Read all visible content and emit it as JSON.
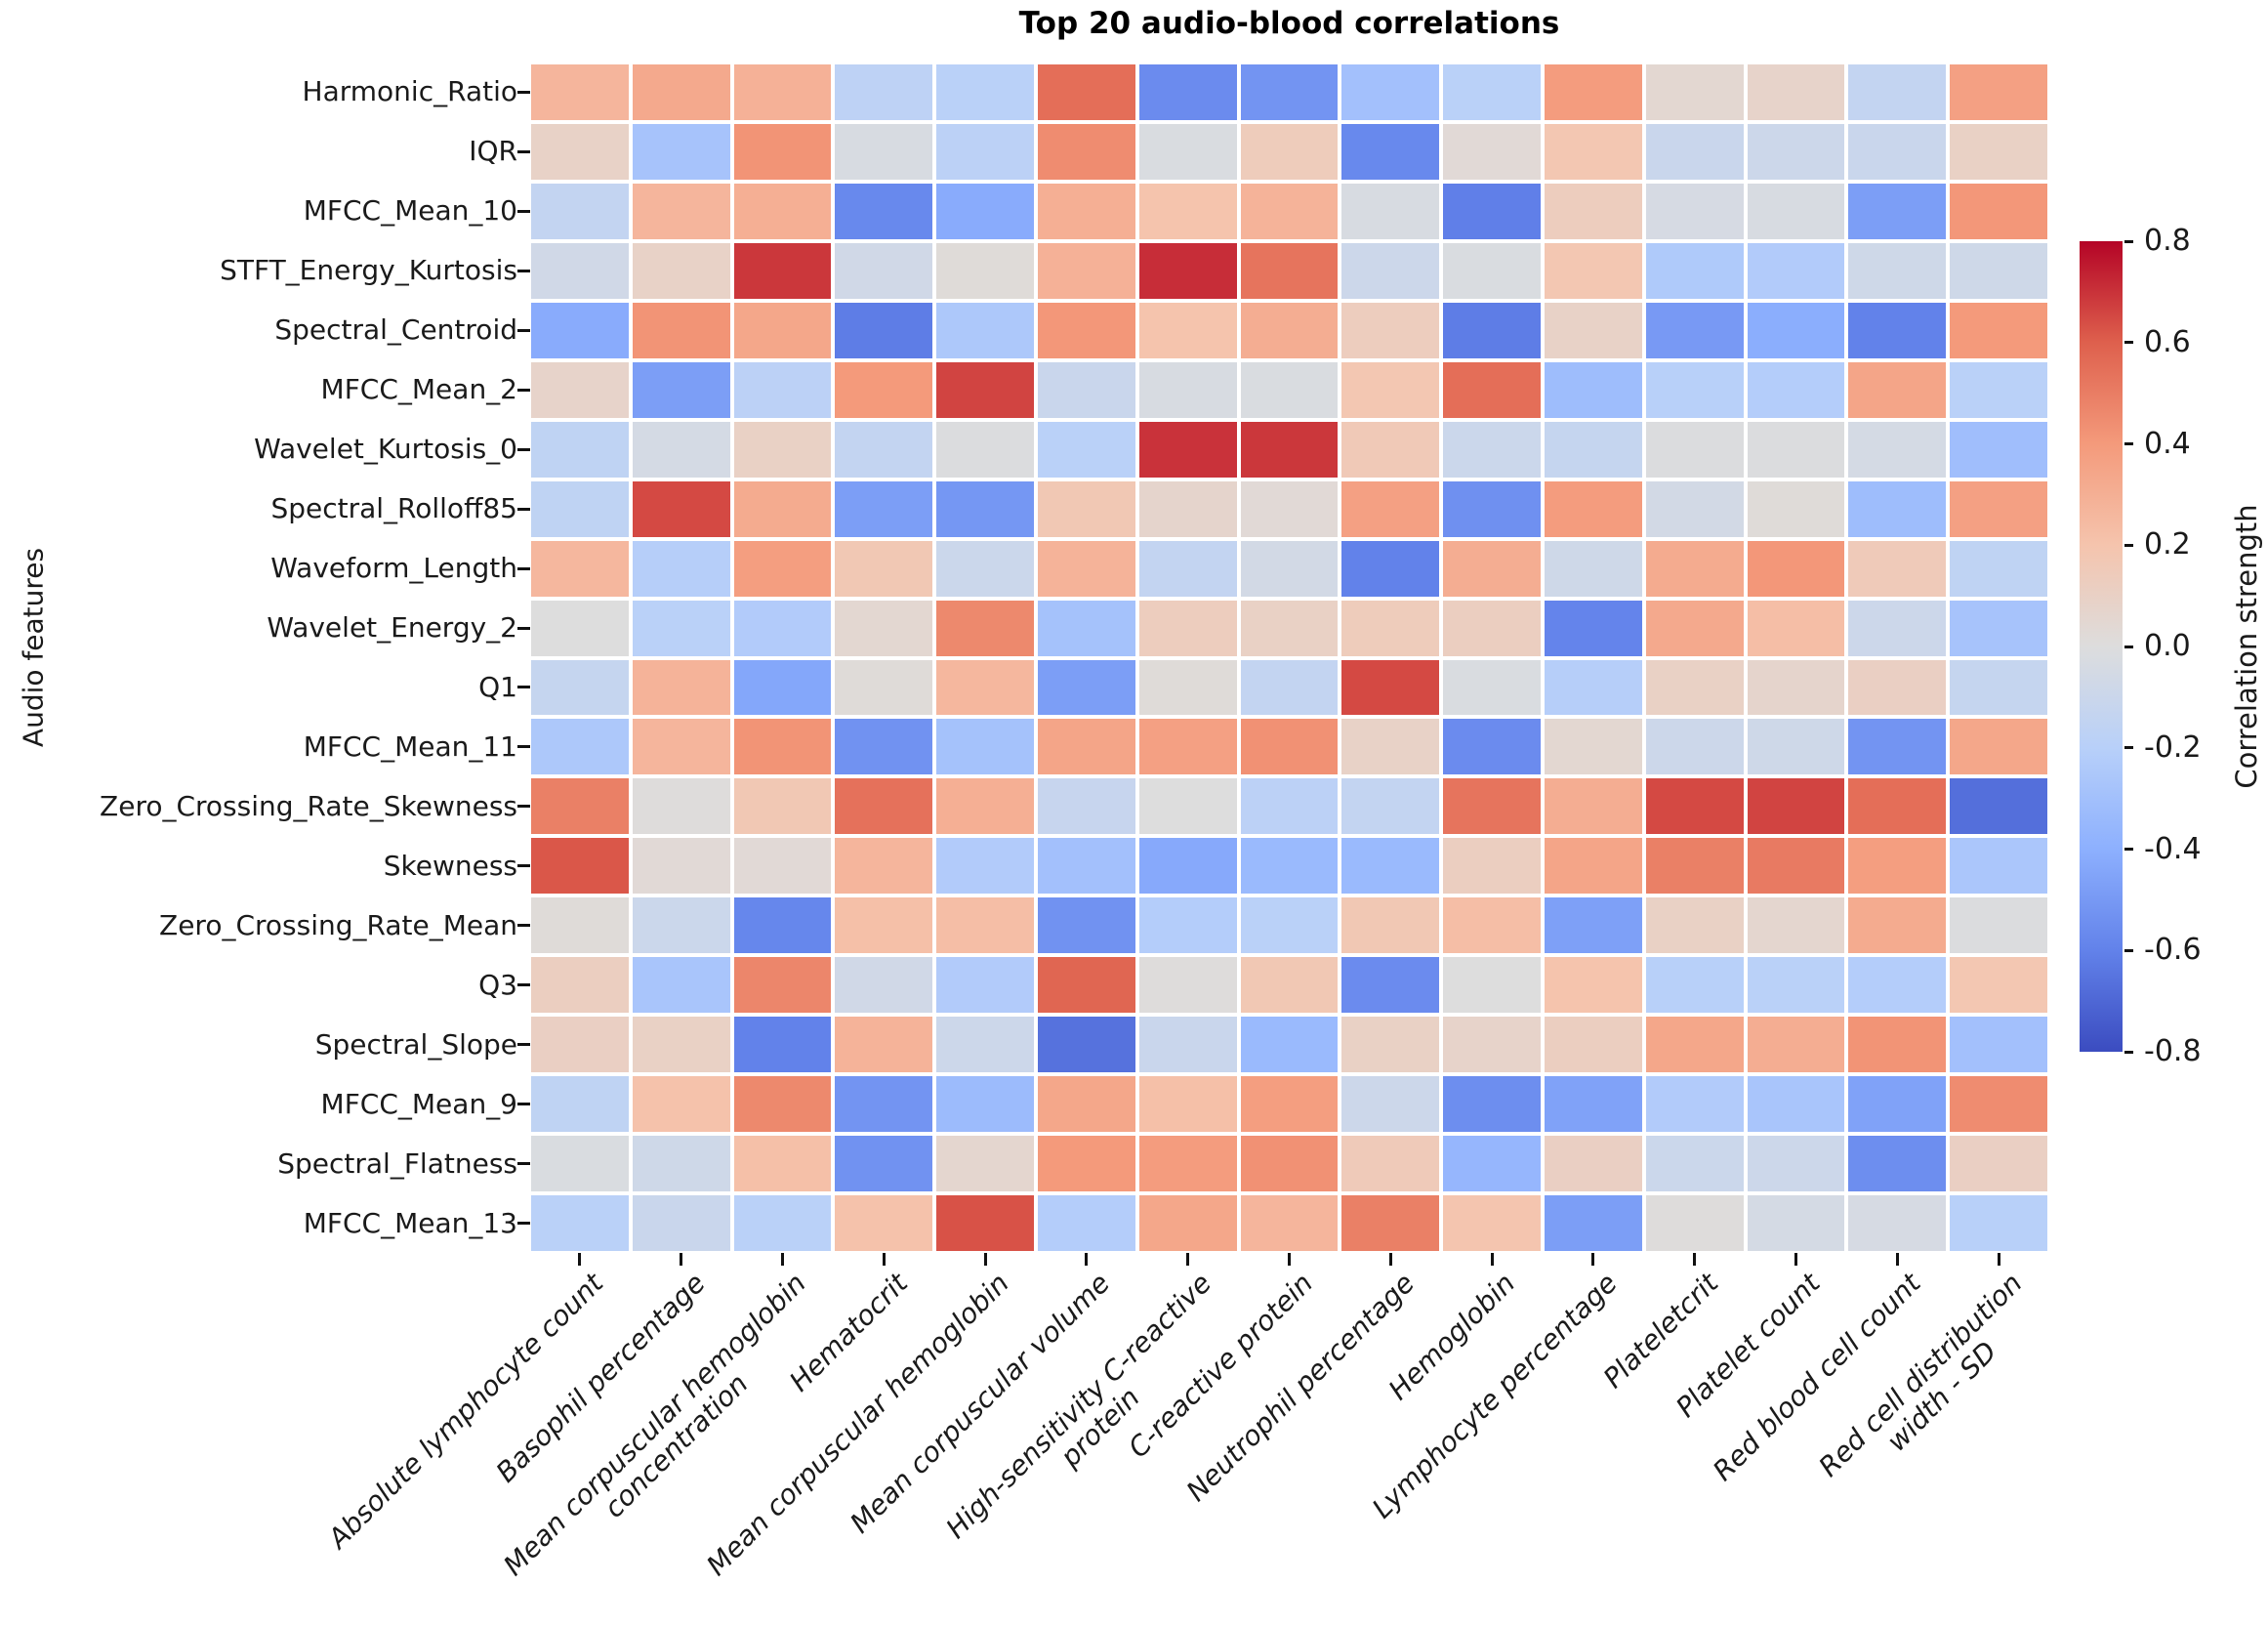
{
  "chart_data": {
    "type": "heatmap",
    "title": "Top 20 audio-blood correlations",
    "ylabel": "Audio features",
    "xlabel": "",
    "colorbar_label": "Correlation strength",
    "colorbar_tick_labels": [
      "0.8",
      "0.6",
      "0.4",
      "0.2",
      "0.0",
      "-0.2",
      "-0.4",
      "-0.6",
      "-0.8"
    ],
    "colorbar_tick_values": [
      0.8,
      0.6,
      0.4,
      0.2,
      0.0,
      -0.2,
      -0.4,
      -0.6,
      -0.8
    ],
    "value_range": [
      -0.8,
      0.8
    ],
    "colormap": "coolwarm",
    "colormap_stops": [
      {
        "v": -0.8,
        "color": "#3b4cc0"
      },
      {
        "v": -0.6,
        "color": "#6282ea"
      },
      {
        "v": -0.4,
        "color": "#8db0fe"
      },
      {
        "v": -0.2,
        "color": "#b8d0f9"
      },
      {
        "v": 0.0,
        "color": "#dddddd"
      },
      {
        "v": 0.2,
        "color": "#f5c4ad"
      },
      {
        "v": 0.4,
        "color": "#f49a7b"
      },
      {
        "v": 0.6,
        "color": "#de604d"
      },
      {
        "v": 0.8,
        "color": "#b40426"
      }
    ],
    "grid_line_color": "#ffffff",
    "rows": [
      "Harmonic_Ratio",
      "IQR",
      "MFCC_Mean_10",
      "STFT_Energy_Kurtosis",
      "Spectral_Centroid",
      "MFCC_Mean_2",
      "Wavelet_Kurtosis_0",
      "Spectral_Rolloff85",
      "Waveform_Length",
      "Wavelet_Energy_2",
      "Q1",
      "MFCC_Mean_11",
      "Zero_Crossing_Rate_Skewness",
      "Skewness",
      "Zero_Crossing_Rate_Mean",
      "Q3",
      "Spectral_Slope",
      "MFCC_Mean_9",
      "Spectral_Flatness",
      "MFCC_Mean_13"
    ],
    "columns": [
      "Absolute lymphocyte count",
      "Basophil percentage",
      "Mean corpuscular hemoglobin\nconcentration",
      "Hematocrit",
      "Mean corpuscular hemoglobin",
      "Mean corpuscular volume",
      "High-sensitivity C-reactive\nprotein",
      "C-reactive protein",
      "Neutrophil percentage",
      "Hemoglobin",
      "Lymphocyte percentage",
      "Plateletcrit",
      "Platelet count",
      "Red blood cell count",
      "Red cell distribution\nwidth - SD"
    ],
    "values": [
      [
        0.27,
        0.33,
        0.29,
        -0.17,
        -0.19,
        0.55,
        -0.56,
        -0.52,
        -0.3,
        -0.19,
        0.39,
        0.05,
        0.08,
        -0.14,
        0.37
      ],
      [
        0.09,
        -0.28,
        0.42,
        -0.03,
        -0.18,
        0.45,
        -0.02,
        0.14,
        -0.57,
        0.03,
        0.18,
        -0.11,
        -0.09,
        -0.11,
        0.1
      ],
      [
        -0.14,
        0.27,
        0.3,
        -0.57,
        -0.42,
        0.3,
        0.2,
        0.28,
        -0.03,
        -0.61,
        0.13,
        -0.04,
        -0.03,
        -0.48,
        0.41
      ],
      [
        -0.07,
        0.09,
        0.69,
        -0.07,
        0.02,
        0.29,
        0.71,
        0.53,
        -0.09,
        -0.02,
        0.18,
        -0.24,
        -0.23,
        -0.08,
        -0.08
      ],
      [
        -0.42,
        0.42,
        0.34,
        -0.62,
        -0.25,
        0.41,
        0.2,
        0.31,
        0.13,
        -0.62,
        0.09,
        -0.5,
        -0.41,
        -0.6,
        0.4
      ],
      [
        0.08,
        -0.48,
        -0.18,
        0.4,
        0.66,
        -0.11,
        -0.03,
        -0.02,
        0.18,
        0.55,
        -0.32,
        -0.2,
        -0.22,
        0.35,
        -0.19
      ],
      [
        -0.16,
        -0.05,
        0.1,
        -0.14,
        -0.01,
        -0.19,
        0.7,
        0.69,
        0.16,
        -0.1,
        -0.13,
        -0.01,
        -0.01,
        -0.05,
        -0.31
      ],
      [
        -0.16,
        0.65,
        0.32,
        -0.48,
        -0.51,
        0.17,
        0.07,
        0.03,
        0.37,
        -0.54,
        0.39,
        -0.06,
        0.02,
        -0.32,
        0.37
      ],
      [
        0.26,
        -0.21,
        0.38,
        0.17,
        -0.1,
        0.28,
        -0.14,
        -0.06,
        -0.6,
        0.31,
        -0.08,
        0.32,
        0.41,
        0.15,
        -0.16
      ],
      [
        0.0,
        -0.19,
        -0.23,
        0.05,
        0.46,
        -0.29,
        0.13,
        0.1,
        0.14,
        0.12,
        -0.59,
        0.33,
        0.23,
        -0.09,
        -0.28
      ],
      [
        -0.13,
        0.28,
        -0.44,
        0.02,
        0.26,
        -0.48,
        0.02,
        -0.14,
        0.65,
        -0.02,
        -0.21,
        0.1,
        0.07,
        0.11,
        -0.13
      ],
      [
        -0.25,
        0.27,
        0.42,
        -0.53,
        -0.29,
        0.35,
        0.37,
        0.43,
        0.09,
        -0.56,
        0.05,
        -0.09,
        -0.08,
        -0.52,
        0.34
      ],
      [
        0.49,
        0.01,
        0.17,
        0.54,
        0.3,
        -0.12,
        0.0,
        -0.18,
        -0.14,
        0.53,
        0.31,
        0.65,
        0.66,
        0.55,
        -0.67
      ],
      [
        0.62,
        0.03,
        0.03,
        0.27,
        -0.23,
        -0.3,
        -0.43,
        -0.34,
        -0.34,
        0.12,
        0.35,
        0.49,
        0.51,
        0.38,
        -0.26
      ],
      [
        0.02,
        -0.1,
        -0.58,
        0.22,
        0.23,
        -0.53,
        -0.22,
        -0.19,
        0.17,
        0.23,
        -0.47,
        0.1,
        0.06,
        0.32,
        -0.01
      ],
      [
        0.12,
        -0.27,
        0.47,
        -0.07,
        -0.23,
        0.58,
        0.01,
        0.17,
        -0.56,
        0.0,
        0.2,
        -0.2,
        -0.19,
        -0.22,
        0.18
      ],
      [
        0.11,
        0.1,
        -0.6,
        0.28,
        -0.09,
        -0.66,
        -0.11,
        -0.34,
        0.1,
        0.08,
        0.12,
        0.34,
        0.31,
        0.42,
        -0.3
      ],
      [
        -0.16,
        0.21,
        0.46,
        -0.52,
        -0.33,
        0.34,
        0.22,
        0.38,
        -0.09,
        -0.55,
        -0.46,
        -0.23,
        -0.27,
        -0.46,
        0.45
      ],
      [
        -0.02,
        -0.08,
        0.22,
        -0.53,
        0.06,
        0.4,
        0.39,
        0.43,
        0.15,
        -0.36,
        0.11,
        -0.1,
        -0.09,
        -0.55,
        0.11
      ],
      [
        -0.19,
        -0.11,
        -0.19,
        0.21,
        0.63,
        -0.22,
        0.34,
        0.27,
        0.49,
        0.19,
        -0.48,
        0.01,
        -0.05,
        -0.04,
        -0.2
      ]
    ]
  }
}
